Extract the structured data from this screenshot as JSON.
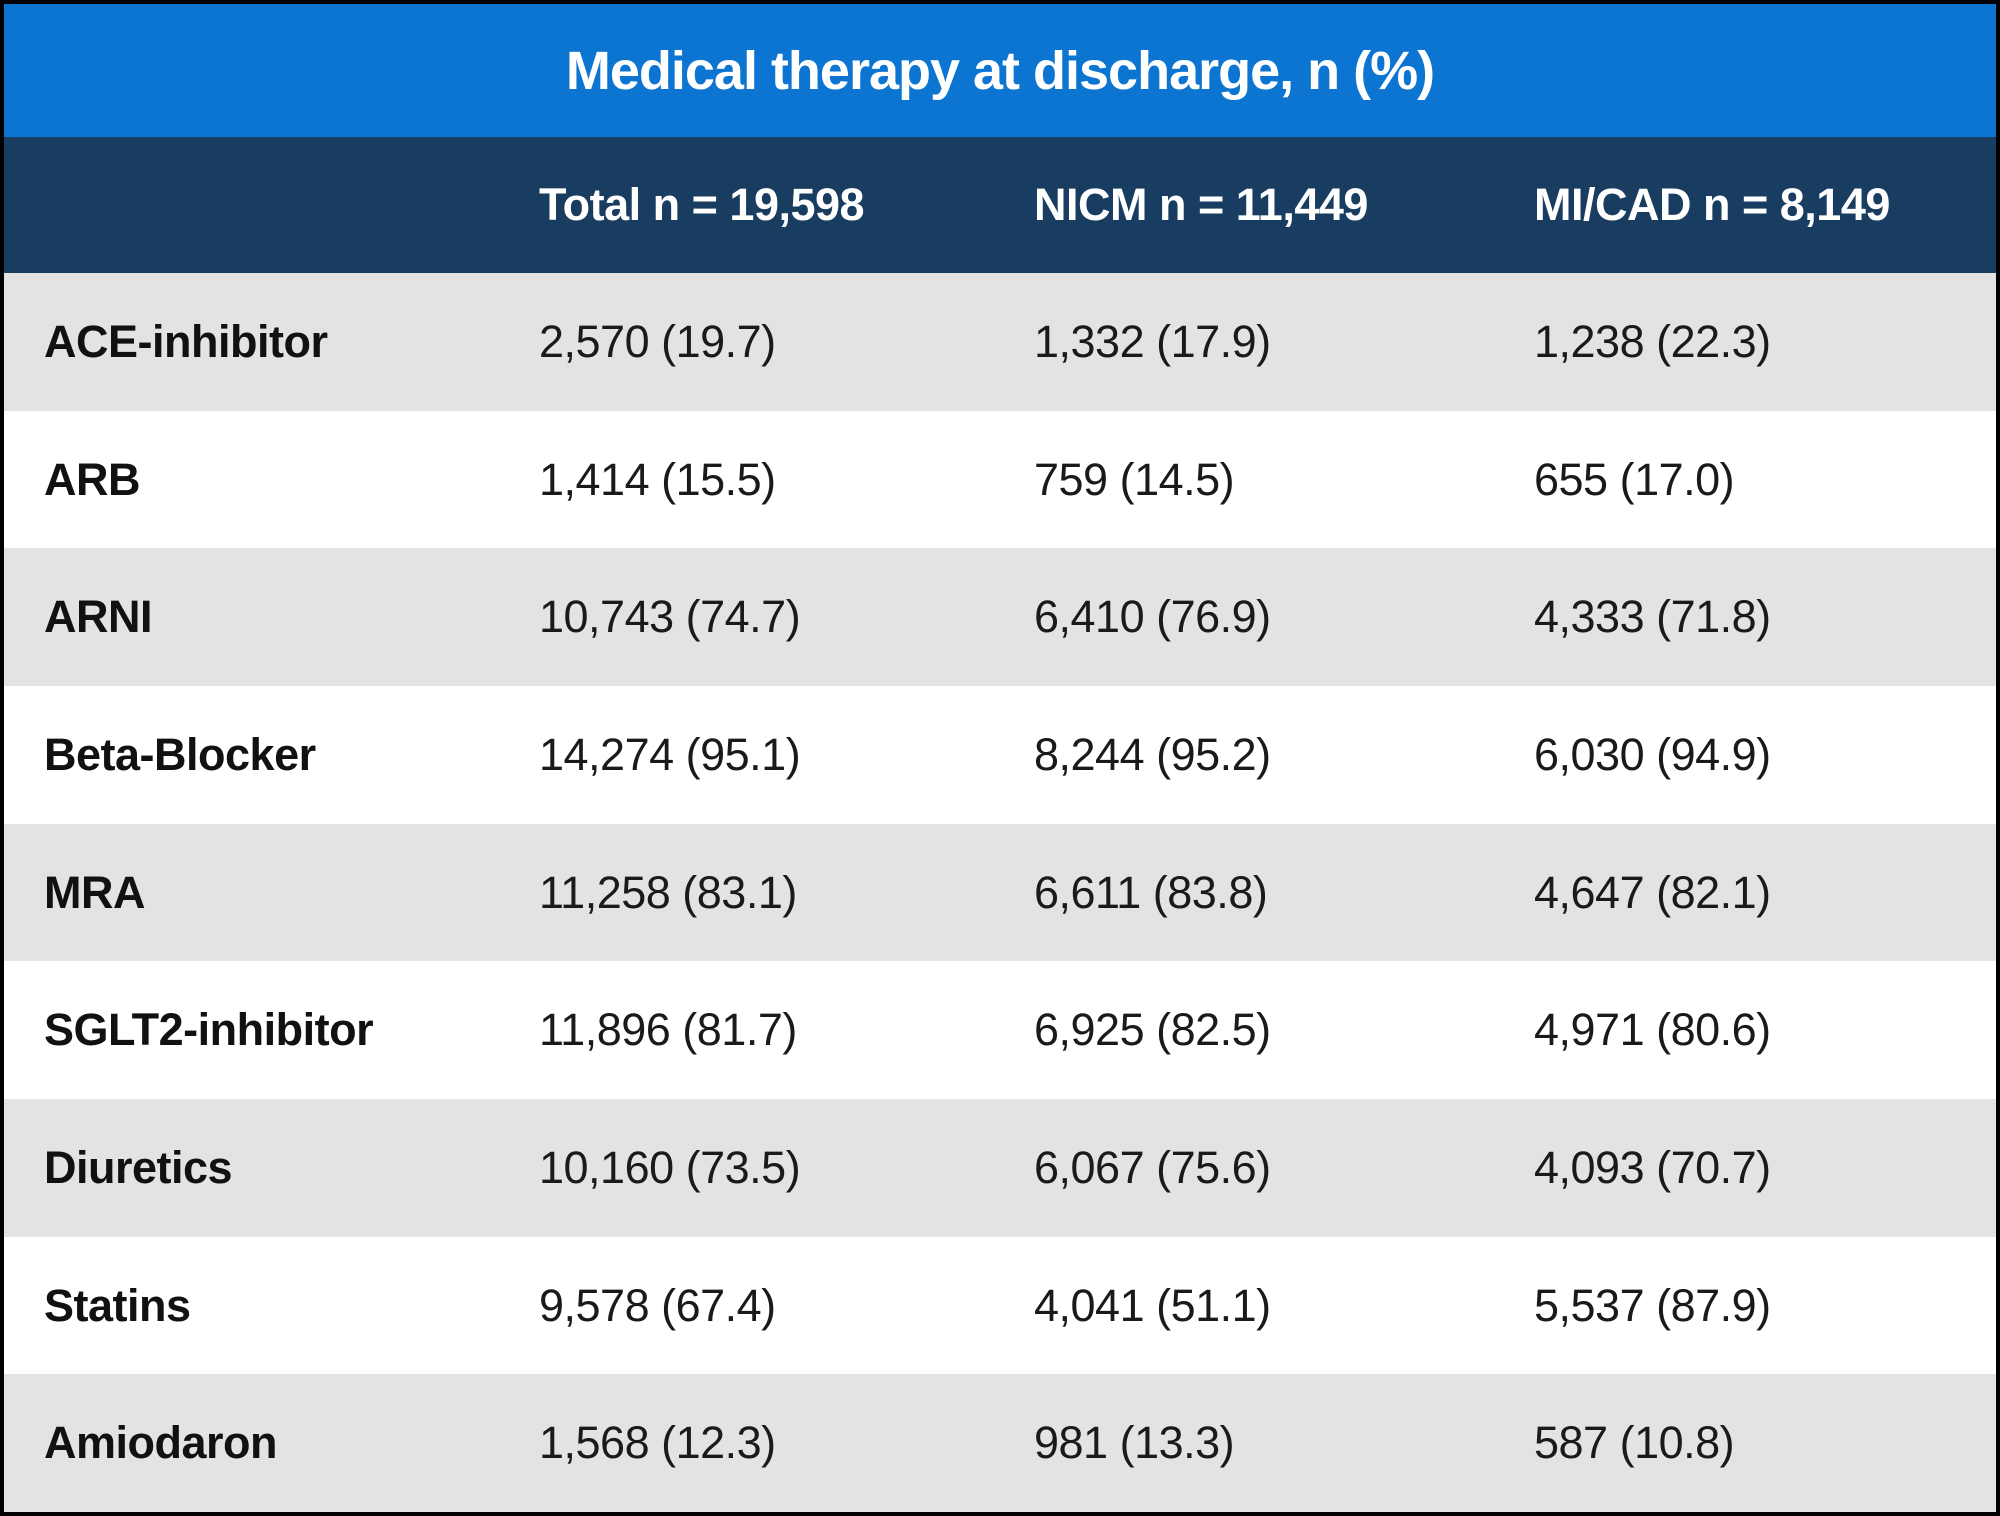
{
  "colors": {
    "title_bg": "#0C75D2",
    "header_bg": "#183D61",
    "row_alt_bg": "#E4E3E3",
    "row_bg": "#FFFFFF",
    "border": "#000000",
    "title_text": "#FFFFFF",
    "header_text": "#FFFFFF",
    "body_text": "#1A1A1A"
  },
  "table": {
    "title": "Medical therapy at discharge, n (%)",
    "columns": [
      "",
      "Total n = 19,598",
      "NICM n = 11,449",
      "MI/CAD n = 8,149"
    ],
    "rows": [
      {
        "label": "ACE-inhibitor",
        "values": [
          "2,570 (19.7)",
          "1,332 (17.9)",
          "1,238 (22.3)"
        ]
      },
      {
        "label": "ARB",
        "values": [
          "1,414 (15.5)",
          "759 (14.5)",
          "655 (17.0)"
        ]
      },
      {
        "label": "ARNI",
        "values": [
          "10,743 (74.7)",
          "6,410 (76.9)",
          "4,333 (71.8)"
        ]
      },
      {
        "label": "Beta-Blocker",
        "values": [
          "14,274 (95.1)",
          "8,244 (95.2)",
          "6,030 (94.9)"
        ]
      },
      {
        "label": "MRA",
        "values": [
          "11,258 (83.1)",
          "6,611 (83.8)",
          "4,647 (82.1)"
        ]
      },
      {
        "label": "SGLT2-inhibitor",
        "values": [
          "11,896 (81.7)",
          "6,925 (82.5)",
          "4,971 (80.6)"
        ]
      },
      {
        "label": "Diuretics",
        "values": [
          "10,160 (73.5)",
          "6,067 (75.6)",
          "4,093 (70.7)"
        ]
      },
      {
        "label": "Statins",
        "values": [
          "9,578 (67.4)",
          "4,041 (51.1)",
          "5,537 (87.9)"
        ]
      },
      {
        "label": "Amiodaron",
        "values": [
          "1,568 (12.3)",
          "981 (13.3)",
          "587 (10.8)"
        ]
      }
    ]
  },
  "chart_data": {
    "type": "table",
    "title": "Medical therapy at discharge, n (%)",
    "row_labels": [
      "ACE-inhibitor",
      "ARB",
      "ARNI",
      "Beta-Blocker",
      "MRA",
      "SGLT2-inhibitor",
      "Diuretics",
      "Statins",
      "Amiodaron"
    ],
    "columns": [
      "Total n = 19,598",
      "NICM n = 11,449",
      "MI/CAD n = 8,149"
    ],
    "series": [
      {
        "name": "Total n = 19,598",
        "group_n": 19598,
        "n": [
          2570,
          1414,
          10743,
          14274,
          11258,
          11896,
          10160,
          9578,
          1568
        ],
        "pct": [
          19.7,
          15.5,
          74.7,
          95.1,
          83.1,
          81.7,
          73.5,
          67.4,
          12.3
        ]
      },
      {
        "name": "NICM n = 11,449",
        "group_n": 11449,
        "n": [
          1332,
          759,
          6410,
          8244,
          6611,
          6925,
          6067,
          4041,
          981
        ],
        "pct": [
          17.9,
          14.5,
          76.9,
          95.2,
          83.8,
          82.5,
          75.6,
          51.1,
          13.3
        ]
      },
      {
        "name": "MI/CAD n = 8,149",
        "group_n": 8149,
        "n": [
          1238,
          655,
          4333,
          6030,
          4647,
          4971,
          4093,
          5537,
          587
        ],
        "pct": [
          22.3,
          17.0,
          71.8,
          94.9,
          82.1,
          80.6,
          70.7,
          87.9,
          10.8
        ]
      }
    ],
    "layout": {
      "striped_rows": true,
      "header_style": "dark-navy",
      "title_style": "bright-blue-banner"
    }
  }
}
